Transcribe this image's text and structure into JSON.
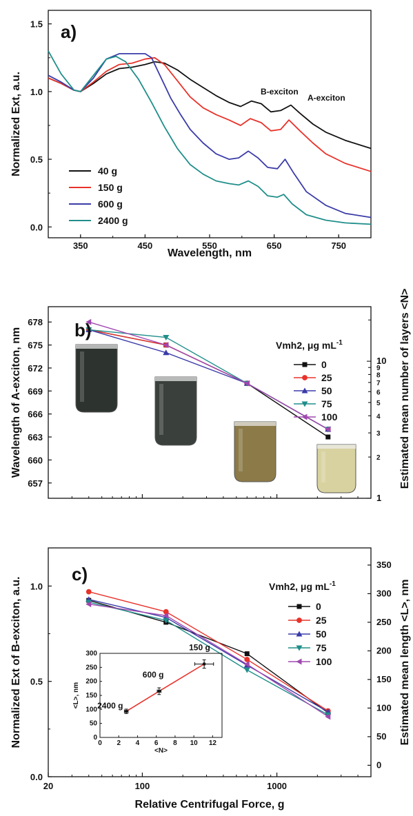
{
  "chart_data": [
    {
      "type": "line",
      "panel_label": "a)",
      "xlabel": "Wavelength, nm",
      "ylabel": "Normalized Ext, a.u.",
      "xlim": [
        300,
        800
      ],
      "ylim": [
        -0.08,
        1.6
      ],
      "xticks": [
        "350",
        "450",
        "550",
        "650",
        "750"
      ],
      "yticks": [
        "0.0",
        "0.5",
        "1.0",
        "1.5"
      ],
      "annotations": [
        "B-exciton",
        "A-exciton"
      ],
      "legend_position": "lower-left",
      "series": [
        {
          "name": "40 g",
          "color": "#111111",
          "x": [
            300,
            320,
            340,
            350,
            370,
            390,
            410,
            430,
            450,
            465,
            480,
            500,
            520,
            540,
            560,
            580,
            598,
            615,
            630,
            645,
            660,
            676,
            690,
            710,
            730,
            760,
            800
          ],
          "y": [
            1.1,
            1.06,
            1.01,
            1.0,
            1.06,
            1.13,
            1.17,
            1.18,
            1.2,
            1.22,
            1.21,
            1.16,
            1.09,
            1.03,
            0.97,
            0.92,
            0.89,
            0.93,
            0.91,
            0.85,
            0.86,
            0.9,
            0.84,
            0.76,
            0.7,
            0.64,
            0.58
          ]
        },
        {
          "name": "150 g",
          "color": "#e8322a",
          "x": [
            300,
            320,
            340,
            350,
            370,
            390,
            410,
            430,
            450,
            465,
            480,
            500,
            520,
            540,
            560,
            580,
            598,
            613,
            630,
            645,
            660,
            673,
            690,
            710,
            730,
            760,
            800
          ],
          "y": [
            1.1,
            1.06,
            1.01,
            1.0,
            1.07,
            1.15,
            1.2,
            1.21,
            1.24,
            1.25,
            1.2,
            1.08,
            0.96,
            0.88,
            0.83,
            0.79,
            0.75,
            0.8,
            0.77,
            0.71,
            0.72,
            0.79,
            0.71,
            0.62,
            0.54,
            0.47,
            0.41
          ]
        },
        {
          "name": "600 g",
          "color": "#3a3ba8",
          "x": [
            300,
            320,
            340,
            350,
            370,
            390,
            410,
            430,
            450,
            460,
            475,
            490,
            505,
            520,
            540,
            560,
            580,
            595,
            610,
            625,
            640,
            655,
            667,
            680,
            700,
            730,
            760,
            800
          ],
          "y": [
            1.12,
            1.07,
            1.01,
            1.0,
            1.1,
            1.24,
            1.28,
            1.28,
            1.28,
            1.25,
            1.1,
            0.95,
            0.83,
            0.72,
            0.62,
            0.54,
            0.5,
            0.51,
            0.56,
            0.51,
            0.44,
            0.43,
            0.5,
            0.4,
            0.26,
            0.16,
            0.1,
            0.07
          ]
        },
        {
          "name": "2400 g",
          "color": "#1f8e8a",
          "x": [
            300,
            320,
            340,
            350,
            370,
            390,
            405,
            420,
            440,
            460,
            480,
            500,
            520,
            540,
            560,
            580,
            595,
            610,
            625,
            640,
            655,
            665,
            678,
            700,
            730,
            760,
            800
          ],
          "y": [
            1.3,
            1.13,
            1.01,
            1.0,
            1.12,
            1.24,
            1.26,
            1.22,
            1.09,
            0.92,
            0.74,
            0.58,
            0.46,
            0.39,
            0.34,
            0.32,
            0.31,
            0.34,
            0.3,
            0.23,
            0.22,
            0.24,
            0.17,
            0.09,
            0.05,
            0.03,
            0.02
          ]
        }
      ]
    },
    {
      "type": "line",
      "panel_label": "b)",
      "xlabel": "",
      "ylabel": "Wavelength of A-exciton, nm",
      "y2label": "Estimated mean number of layers <N>",
      "x_scale": "log",
      "xlim": [
        20,
        5000
      ],
      "ylim": [
        655,
        680
      ],
      "yticks": [
        "657",
        "660",
        "663",
        "666",
        "669",
        "672",
        "675",
        "678"
      ],
      "y2_scale": "log",
      "y2lim": [
        1,
        25
      ],
      "y2ticks": [
        "1",
        "2",
        "3",
        "4",
        "5",
        "6",
        "7",
        "8",
        "9",
        "10"
      ],
      "legend_title": "Vmh2, μg mL",
      "legend_title_sup": "-1",
      "legend_position": "right",
      "x": [
        40,
        150,
        600,
        2400
      ],
      "series": [
        {
          "name": "0",
          "color": "#111111",
          "marker": "square",
          "values": [
            677,
            675,
            670,
            663
          ]
        },
        {
          "name": "25",
          "color": "#e8322a",
          "marker": "circle",
          "values": [
            677,
            675,
            670,
            664
          ]
        },
        {
          "name": "50",
          "color": "#3a3ba8",
          "marker": "triangle-up",
          "values": [
            677,
            674,
            670,
            664
          ]
        },
        {
          "name": "75",
          "color": "#1f8e8a",
          "marker": "triangle-down",
          "values": [
            677,
            676,
            670,
            664
          ]
        },
        {
          "name": "100",
          "color": "#a047b0",
          "marker": "triangle-left",
          "values": [
            678,
            675,
            670,
            664
          ]
        }
      ],
      "vial_colors": [
        "#2d332f",
        "#3a403c",
        "#8c7a48",
        "#d8d2a0"
      ]
    },
    {
      "type": "line",
      "panel_label": "c)",
      "xlabel": "Relative Centrifugal Force, g",
      "ylabel": "Normalized Ext of B-exciton, a.u.",
      "y2label": "Estimated mean length <L>, nm",
      "x_scale": "log",
      "xlim": [
        20,
        5000
      ],
      "xticks": [
        "20",
        "100",
        "1000"
      ],
      "ylim": [
        0,
        1.2
      ],
      "yticks": [
        "0.0",
        "0.5",
        "1.0"
      ],
      "y2lim": [
        -20,
        380
      ],
      "y2ticks": [
        "0",
        "50",
        "100",
        "150",
        "200",
        "250",
        "300",
        "350"
      ],
      "legend_title": "Vmh2, μg mL",
      "legend_title_sup": "-1",
      "legend_position": "right",
      "x": [
        40,
        150,
        600,
        2400
      ],
      "series": [
        {
          "name": "0",
          "color": "#111111",
          "marker": "square",
          "values": [
            0.925,
            0.81,
            0.645,
            0.335
          ]
        },
        {
          "name": "25",
          "color": "#e8322a",
          "marker": "circle",
          "values": [
            0.97,
            0.865,
            0.615,
            0.345
          ]
        },
        {
          "name": "50",
          "color": "#3a3ba8",
          "marker": "triangle-up",
          "values": [
            0.93,
            0.835,
            0.585,
            0.34
          ]
        },
        {
          "name": "75",
          "color": "#1f8e8a",
          "marker": "triangle-down",
          "values": [
            0.915,
            0.82,
            0.56,
            0.325
          ]
        },
        {
          "name": "100",
          "color": "#a047b0",
          "marker": "triangle-left",
          "values": [
            0.905,
            0.845,
            0.59,
            0.315
          ]
        }
      ],
      "inset": {
        "type": "scatter",
        "xlabel": "<N>",
        "ylabel": "<L>, nm",
        "xlim": [
          0,
          13
        ],
        "ylim": [
          0,
          300
        ],
        "xticks": [
          "0",
          "2",
          "4",
          "6",
          "8",
          "10",
          "12"
        ],
        "yticks": [
          "0",
          "50",
          "100",
          "150",
          "200",
          "250",
          "300"
        ],
        "color": "#e8322a",
        "points": [
          {
            "label": "2400 g",
            "x": 2.8,
            "y": 93,
            "xerr": 0.2,
            "yerr": 8
          },
          {
            "label": "600 g",
            "x": 6.3,
            "y": 165,
            "xerr": 0.2,
            "yerr": 12
          },
          {
            "label": "150 g",
            "x": 11.1,
            "y": 262,
            "xerr": 1.0,
            "yerr": 15
          }
        ]
      }
    }
  ]
}
